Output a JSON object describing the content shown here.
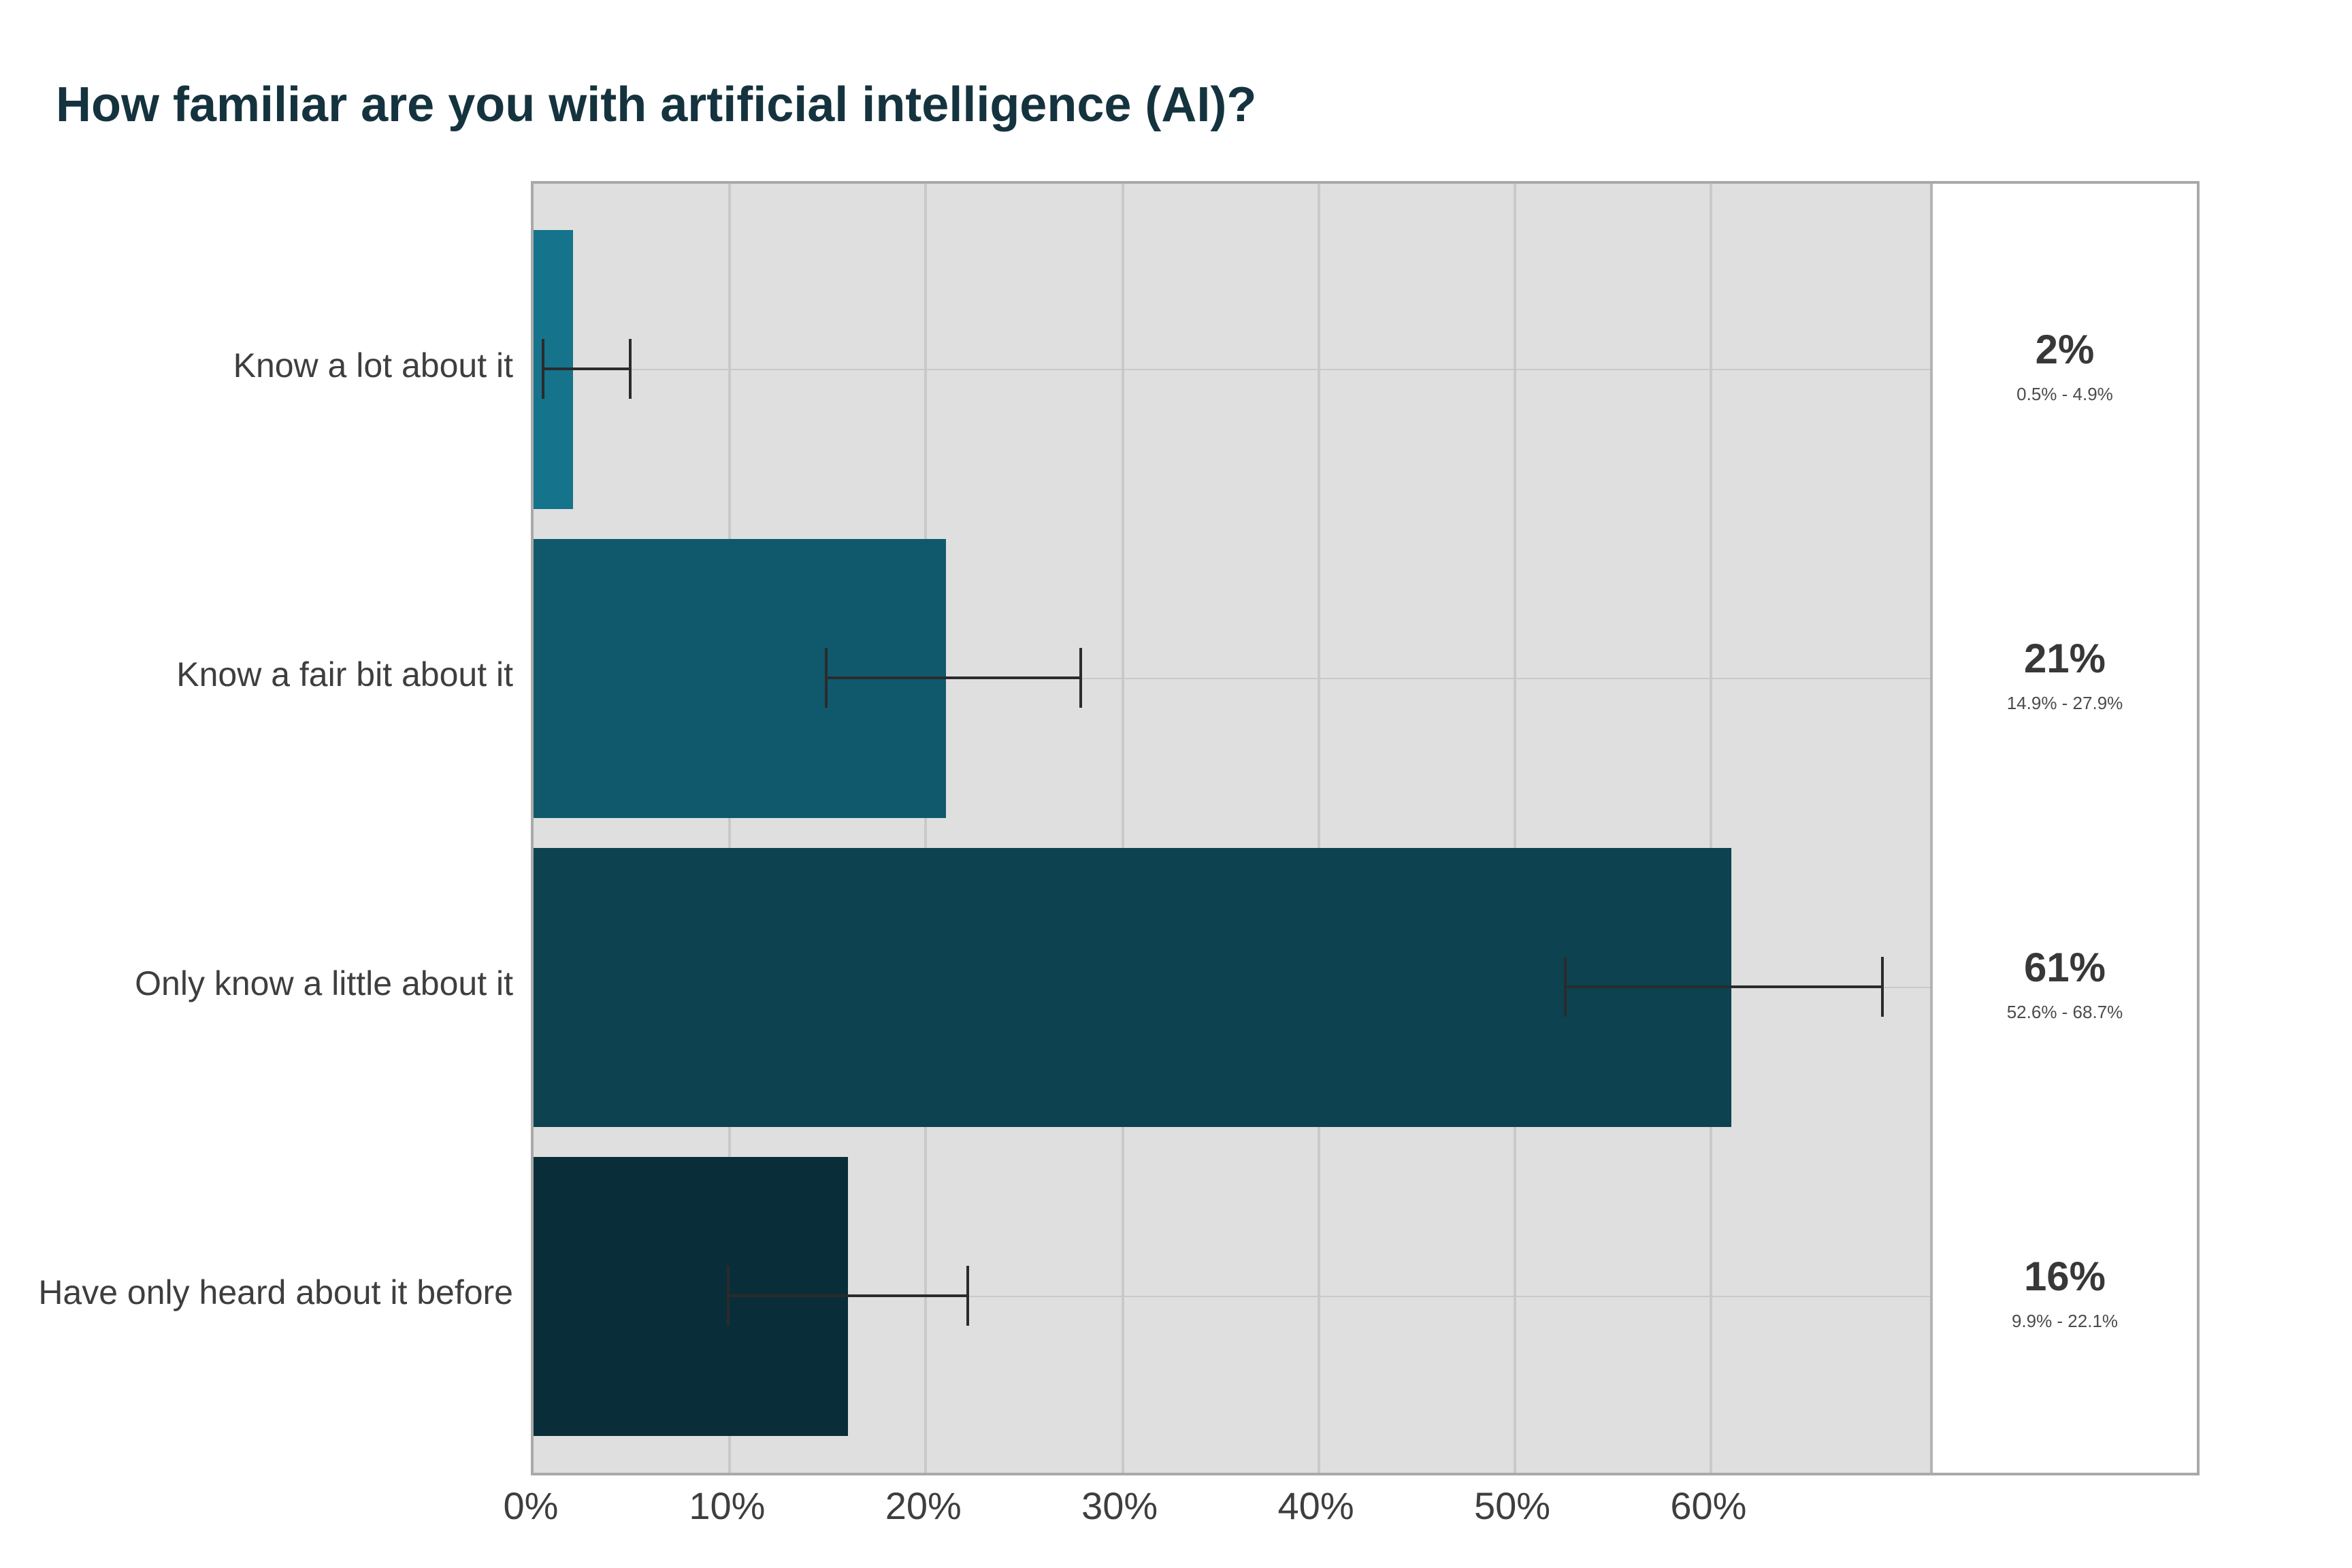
{
  "title": "How familiar are you with artificial intelligence (AI)?",
  "chart_data": {
    "type": "bar",
    "orientation": "horizontal",
    "title": "How familiar are you with artificial intelligence (AI)?",
    "categories": [
      "Know a lot about it",
      "Know a fair bit about it",
      "Only know a little about it",
      "Have only heard about it before"
    ],
    "values": [
      2,
      21,
      61,
      16
    ],
    "ci_low": [
      0.5,
      14.9,
      52.6,
      9.9
    ],
    "ci_high": [
      4.9,
      27.9,
      68.7,
      22.1
    ],
    "value_labels": [
      "2%",
      "21%",
      "61%",
      "16%"
    ],
    "ci_labels": [
      "0.5% - 4.9%",
      "14.9% - 27.9%",
      "52.6% - 68.7%",
      "9.9% - 22.1%"
    ],
    "bar_colors": [
      "#15738c",
      "#10596c",
      "#0d4250",
      "#092e3a"
    ],
    "x_tick_labels": [
      "0%",
      "10%",
      "20%",
      "30%",
      "40%",
      "50%",
      "60%"
    ],
    "x_tick_values": [
      0,
      10,
      20,
      30,
      40,
      50,
      60
    ],
    "xlim": [
      0,
      71.3
    ],
    "xlabel": "",
    "ylabel": "",
    "grid": "on",
    "error_bars": "95% confidence interval whiskers",
    "panel_background": "#dfdfdf",
    "gridline_color": "#c9c9c9",
    "title_color": "#14333e",
    "text_color": "#3e3e3e",
    "legend": "none"
  }
}
